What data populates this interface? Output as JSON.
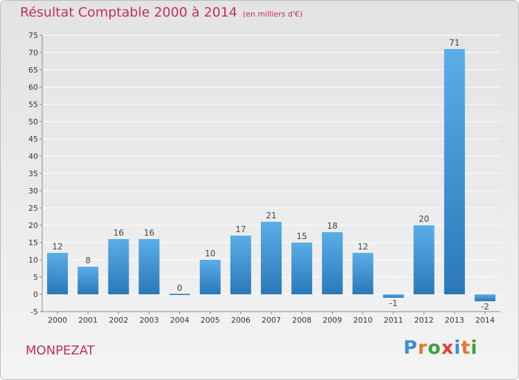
{
  "header": {
    "title": "Résultat Comptable 2000 à 2014",
    "subtitle": "(en milliers d'€)"
  },
  "footer": {
    "commune": "MONPEZAT",
    "logo_letters": [
      "P",
      "r",
      "o",
      "x",
      "i",
      "t",
      "i"
    ],
    "logo_colors": [
      "#3a8fd6",
      "#e8762c",
      "#3aa23a",
      "#e63a3a",
      "#3a8fd6",
      "#e8762c",
      "#3aa23a"
    ]
  },
  "colors": {
    "bar_top": "#5aaee8",
    "bar_bottom": "#2a78b8",
    "title": "#c0305a",
    "grid": "#ffffff"
  },
  "chart_data": {
    "type": "bar",
    "title": "Résultat Comptable 2000 à 2014",
    "subtitle": "(en milliers d'€)",
    "categories": [
      "2000",
      "2001",
      "2002",
      "2003",
      "2004",
      "2005",
      "2006",
      "2007",
      "2008",
      "2009",
      "2010",
      "2011",
      "2012",
      "2013",
      "2014"
    ],
    "values": [
      12,
      8,
      16,
      16,
      0,
      10,
      17,
      21,
      15,
      18,
      12,
      -1,
      20,
      71,
      -2
    ],
    "ylim": [
      -5,
      75
    ],
    "yticks": [
      -5,
      0,
      5,
      10,
      15,
      20,
      25,
      30,
      35,
      40,
      45,
      50,
      55,
      60,
      65,
      70,
      75
    ],
    "grid": true
  }
}
